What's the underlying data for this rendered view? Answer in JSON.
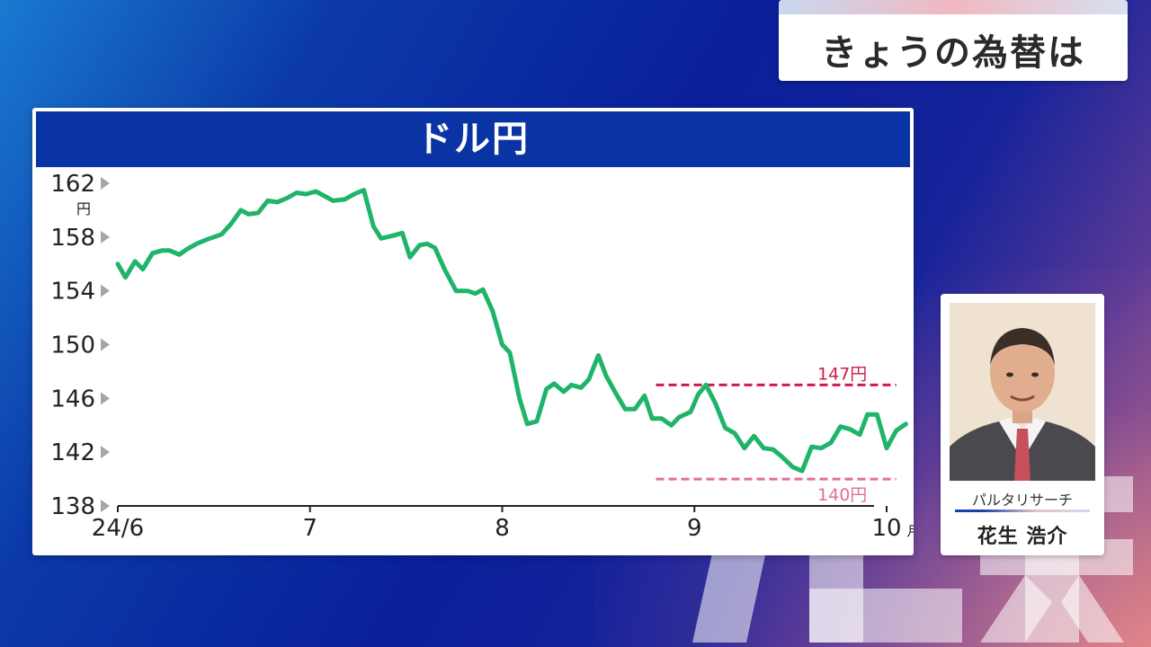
{
  "headline": "きょうの為替は",
  "chart_data": {
    "type": "line",
    "title": "ドル円",
    "y_unit": "円",
    "x_unit": "月",
    "ylim": [
      138,
      162
    ],
    "y_ticks": [
      162,
      158,
      154,
      150,
      146,
      142,
      138
    ],
    "x_ticks": [
      {
        "t": 0,
        "label": "24/6"
      },
      {
        "t": 1,
        "label": "7"
      },
      {
        "t": 2,
        "label": "8"
      },
      {
        "t": 3,
        "label": "9"
      },
      {
        "t": 4,
        "label": "10"
      }
    ],
    "xlim": [
      0,
      4
    ],
    "grid": false,
    "line_color": "#1fb46a",
    "series": [
      {
        "values": [
          [
            0.0,
            156.0
          ],
          [
            0.04,
            155.0
          ],
          [
            0.09,
            156.2
          ],
          [
            0.13,
            155.6
          ],
          [
            0.18,
            156.8
          ],
          [
            0.23,
            157.0
          ],
          [
            0.27,
            157.0
          ],
          [
            0.32,
            156.7
          ],
          [
            0.36,
            157.1
          ],
          [
            0.41,
            157.5
          ],
          [
            0.46,
            157.8
          ],
          [
            0.54,
            158.2
          ],
          [
            0.59,
            159.0
          ],
          [
            0.64,
            160.0
          ],
          [
            0.68,
            159.7
          ],
          [
            0.73,
            159.8
          ],
          [
            0.78,
            160.7
          ],
          [
            0.83,
            160.6
          ],
          [
            0.88,
            160.9
          ],
          [
            0.93,
            161.3
          ],
          [
            0.98,
            161.2
          ],
          [
            1.03,
            161.4
          ],
          [
            1.07,
            161.1
          ],
          [
            1.12,
            160.7
          ],
          [
            1.18,
            160.8
          ],
          [
            1.23,
            161.2
          ],
          [
            1.28,
            161.5
          ],
          [
            1.33,
            158.8
          ],
          [
            1.37,
            157.9
          ],
          [
            1.43,
            158.1
          ],
          [
            1.48,
            158.3
          ],
          [
            1.52,
            156.5
          ],
          [
            1.57,
            157.4
          ],
          [
            1.61,
            157.5
          ],
          [
            1.65,
            157.2
          ],
          [
            1.7,
            155.6
          ],
          [
            1.76,
            154.0
          ],
          [
            1.82,
            154.0
          ],
          [
            1.86,
            153.8
          ],
          [
            1.9,
            154.1
          ],
          [
            1.95,
            152.5
          ],
          [
            2.0,
            150.0
          ],
          [
            2.04,
            149.4
          ],
          [
            2.09,
            146.0
          ],
          [
            2.13,
            144.1
          ],
          [
            2.18,
            144.3
          ],
          [
            2.23,
            146.7
          ],
          [
            2.27,
            147.1
          ],
          [
            2.32,
            146.5
          ],
          [
            2.36,
            147.0
          ],
          [
            2.41,
            146.8
          ],
          [
            2.45,
            147.4
          ],
          [
            2.5,
            149.2
          ],
          [
            2.54,
            147.7
          ],
          [
            2.59,
            146.4
          ],
          [
            2.64,
            145.2
          ],
          [
            2.69,
            145.2
          ],
          [
            2.74,
            146.2
          ],
          [
            2.78,
            144.5
          ],
          [
            2.83,
            144.5
          ],
          [
            2.88,
            144.0
          ],
          [
            2.92,
            144.6
          ],
          [
            2.98,
            145.0
          ],
          [
            3.02,
            146.3
          ],
          [
            3.06,
            147.0
          ],
          [
            3.11,
            145.6
          ],
          [
            3.16,
            143.8
          ],
          [
            3.21,
            143.4
          ],
          [
            3.26,
            142.3
          ],
          [
            3.31,
            143.2
          ],
          [
            3.36,
            142.3
          ],
          [
            3.41,
            142.2
          ],
          [
            3.46,
            141.6
          ],
          [
            3.51,
            140.9
          ],
          [
            3.56,
            140.6
          ],
          [
            3.61,
            142.4
          ],
          [
            3.66,
            142.3
          ],
          [
            3.71,
            142.7
          ],
          [
            3.76,
            143.9
          ],
          [
            3.81,
            143.7
          ],
          [
            3.86,
            143.3
          ],
          [
            3.9,
            144.8
          ],
          [
            3.95,
            144.8
          ],
          [
            4.0,
            142.3
          ],
          [
            4.05,
            143.6
          ],
          [
            4.1,
            144.1
          ]
        ]
      }
    ],
    "annotations": [
      {
        "label": "147円",
        "value": 147,
        "x_from": 2.8,
        "x_to": 4.05,
        "color": "#d01a4a"
      },
      {
        "label": "140円",
        "value": 140,
        "x_from": 2.8,
        "x_to": 4.05,
        "color": "#e27090"
      }
    ]
  },
  "analyst": {
    "organization": "パルタリサーチ",
    "name": "花生 浩介"
  },
  "colors": {
    "header_blue": "#0a33a3",
    "line_green": "#1fb46a",
    "tick_gray": "#a6a6a6"
  }
}
